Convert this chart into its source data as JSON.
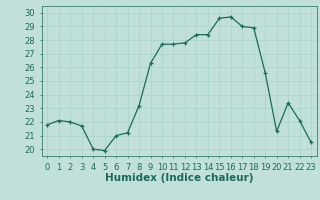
{
  "x": [
    0,
    1,
    2,
    3,
    4,
    5,
    6,
    7,
    8,
    9,
    10,
    11,
    12,
    13,
    14,
    15,
    16,
    17,
    18,
    19,
    20,
    21,
    22,
    23
  ],
  "y": [
    21.8,
    22.1,
    22.0,
    21.7,
    20.0,
    19.9,
    21.0,
    21.2,
    23.2,
    26.3,
    27.7,
    27.7,
    27.8,
    28.4,
    28.4,
    29.6,
    29.7,
    29.0,
    28.9,
    25.6,
    21.3,
    23.4,
    22.1,
    20.5
  ],
  "bg_color": "#c2e0da",
  "line_color": "#1a6b5a",
  "marker": "+",
  "xlabel": "Humidex (Indice chaleur)",
  "ylim": [
    19.5,
    30.5
  ],
  "xlim": [
    -0.5,
    23.5
  ],
  "yticks": [
    20,
    21,
    22,
    23,
    24,
    25,
    26,
    27,
    28,
    29,
    30
  ],
  "xtick_labels": [
    "0",
    "1",
    "2",
    "3",
    "4",
    "5",
    "6",
    "7",
    "8",
    "9",
    "10",
    "11",
    "12",
    "13",
    "14",
    "15",
    "16",
    "17",
    "18",
    "19",
    "20",
    "21",
    "22",
    "23"
  ],
  "grid_color": "#a8d4cc",
  "xlabel_fontsize": 7.5,
  "tick_fontsize": 6.0
}
